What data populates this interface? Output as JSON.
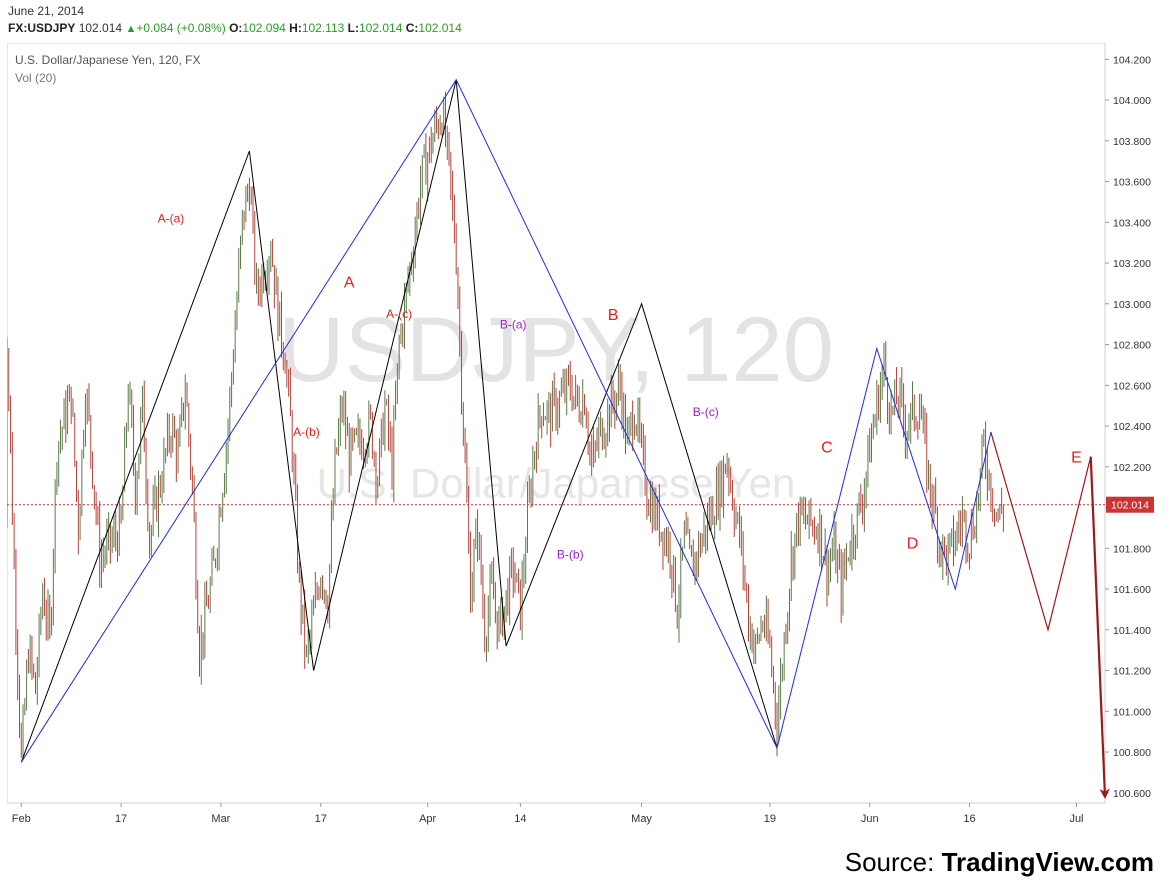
{
  "header": {
    "date": "June 21, 2014",
    "symbol": "FX:USDJPY",
    "last": "102.014",
    "change": "+0.084 (+0.08%)",
    "o_label": "O:",
    "o_value": "102.094",
    "h_label": "H:",
    "h_value": "102.113",
    "l_label": "L:",
    "l_value": "102.014",
    "c_label": "C:",
    "c_value": "102.014"
  },
  "source": {
    "prefix": "Source:",
    "brand": "TradingView.com"
  },
  "colors": {
    "up": "#2a9d2a",
    "candle_up": "#5a7a4a",
    "candle_down": "#b0443a",
    "wave_black": "#000000",
    "wave_blue": "#1f2fd6",
    "wave_red": "#9a1a1a",
    "label_red": "#dd2222",
    "label_purple": "#9a22c8",
    "price_line": "#cc3333"
  },
  "chart_data": {
    "type": "line",
    "title": "U.S. Dollar/Japanese Yen, 120, FX",
    "subtitle": "Vol (20)",
    "watermark": [
      "USDJPY, 120",
      "U.S. Dollar/Japanese Yen"
    ],
    "y_axis_side": "right",
    "ylim": [
      100.55,
      104.28
    ],
    "y_ticks": [
      "104.200",
      "104.000",
      "103.800",
      "103.600",
      "103.400",
      "103.200",
      "103.000",
      "102.800",
      "102.600",
      "102.400",
      "102.200",
      "102.000",
      "101.800",
      "101.600",
      "101.400",
      "101.200",
      "101.000",
      "100.800",
      "100.600"
    ],
    "x_axis_type": "date",
    "xlim": [
      "2014-02-01",
      "2014-07-05"
    ],
    "x_ticks": [
      {
        "date": "2014-02-03",
        "label": "Feb"
      },
      {
        "date": "2014-02-17",
        "label": "17"
      },
      {
        "date": "2014-03-03",
        "label": "Mar"
      },
      {
        "date": "2014-03-17",
        "label": "17"
      },
      {
        "date": "2014-04-01",
        "label": "Apr"
      },
      {
        "date": "2014-04-14",
        "label": "14"
      },
      {
        "date": "2014-05-01",
        "label": "May"
      },
      {
        "date": "2014-05-19",
        "label": "19"
      },
      {
        "date": "2014-06-02",
        "label": "Jun"
      },
      {
        "date": "2014-06-16",
        "label": "16"
      },
      {
        "date": "2014-07-01",
        "label": "Jul"
      }
    ],
    "current_price": 102.014,
    "current_price_label": "102.014",
    "price_path": [
      [
        "2014-02-01",
        101.95
      ],
      [
        "2014-02-01",
        102.85
      ],
      [
        "2014-02-02",
        101.7
      ],
      [
        "2014-02-03",
        100.75
      ],
      [
        "2014-02-04",
        101.3
      ],
      [
        "2014-02-05",
        101.1
      ],
      [
        "2014-02-06",
        101.6
      ],
      [
        "2014-02-07",
        101.35
      ],
      [
        "2014-02-08",
        102.3
      ],
      [
        "2014-02-10",
        102.55
      ],
      [
        "2014-02-11",
        101.9
      ],
      [
        "2014-02-12",
        102.6
      ],
      [
        "2014-02-13",
        102.2
      ],
      [
        "2014-02-14",
        101.75
      ],
      [
        "2014-02-17",
        101.9
      ],
      [
        "2014-02-18",
        102.6
      ],
      [
        "2014-02-19",
        102.1
      ],
      [
        "2014-02-20",
        102.5
      ],
      [
        "2014-02-21",
        101.85
      ],
      [
        "2014-02-24",
        102.4
      ],
      [
        "2014-02-25",
        102.25
      ],
      [
        "2014-02-26",
        102.6
      ],
      [
        "2014-02-27",
        102.1
      ],
      [
        "2014-02-28",
        101.3
      ],
      [
        "2014-03-02",
        101.7
      ],
      [
        "2014-03-04",
        102.4
      ],
      [
        "2014-03-05",
        102.9
      ],
      [
        "2014-03-06",
        103.4
      ],
      [
        "2014-03-07",
        103.6
      ],
      [
        "2014-03-08",
        103.05
      ],
      [
        "2014-03-10",
        103.3
      ],
      [
        "2014-03-11",
        102.95
      ],
      [
        "2014-03-12",
        102.75
      ],
      [
        "2014-03-13",
        102.3
      ],
      [
        "2014-03-14",
        101.6
      ],
      [
        "2014-03-15",
        101.25
      ],
      [
        "2014-03-17",
        101.7
      ],
      [
        "2014-03-18",
        101.55
      ],
      [
        "2014-03-19",
        102.2
      ],
      [
        "2014-03-20",
        102.5
      ],
      [
        "2014-03-21",
        102.25
      ],
      [
        "2014-03-24",
        102.4
      ],
      [
        "2014-03-25",
        102.15
      ],
      [
        "2014-03-26",
        102.5
      ],
      [
        "2014-03-27",
        102.2
      ],
      [
        "2014-03-28",
        102.8
      ],
      [
        "2014-03-30",
        103.3
      ],
      [
        "2014-03-31",
        103.6
      ],
      [
        "2014-04-02",
        103.85
      ],
      [
        "2014-04-03",
        103.95
      ],
      [
        "2014-04-04",
        103.65
      ],
      [
        "2014-04-05",
        103.25
      ],
      [
        "2014-04-06",
        102.4
      ],
      [
        "2014-04-07",
        101.6
      ],
      [
        "2014-04-08",
        101.9
      ],
      [
        "2014-04-09",
        101.4
      ],
      [
        "2014-04-10",
        101.6
      ],
      [
        "2014-04-11",
        101.4
      ],
      [
        "2014-04-13",
        101.7
      ],
      [
        "2014-04-14",
        101.5
      ],
      [
        "2014-04-15",
        101.95
      ],
      [
        "2014-04-16",
        102.3
      ],
      [
        "2014-04-17",
        102.5
      ],
      [
        "2014-04-18",
        102.45
      ],
      [
        "2014-04-21",
        102.6
      ],
      [
        "2014-04-22",
        102.5
      ],
      [
        "2014-04-23",
        102.55
      ],
      [
        "2014-04-24",
        102.2
      ],
      [
        "2014-04-25",
        102.35
      ],
      [
        "2014-04-28",
        102.6
      ],
      [
        "2014-04-29",
        102.3
      ],
      [
        "2014-04-30",
        102.5
      ],
      [
        "2014-05-01",
        102.25
      ],
      [
        "2014-05-02",
        102.05
      ],
      [
        "2014-05-05",
        101.8
      ],
      [
        "2014-05-06",
        101.5
      ],
      [
        "2014-05-07",
        101.85
      ],
      [
        "2014-05-08",
        101.7
      ],
      [
        "2014-05-09",
        101.8
      ],
      [
        "2014-05-12",
        102.1
      ],
      [
        "2014-05-13",
        102.25
      ],
      [
        "2014-05-14",
        102.0
      ],
      [
        "2014-05-15",
        101.8
      ],
      [
        "2014-05-16",
        101.45
      ],
      [
        "2014-05-17",
        101.3
      ],
      [
        "2014-05-18",
        101.45
      ],
      [
        "2014-05-19",
        101.3
      ],
      [
        "2014-05-20",
        100.95
      ],
      [
        "2014-05-21",
        101.35
      ],
      [
        "2014-05-22",
        101.75
      ],
      [
        "2014-05-23",
        101.95
      ],
      [
        "2014-05-26",
        101.9
      ],
      [
        "2014-05-27",
        101.7
      ],
      [
        "2014-05-28",
        101.8
      ],
      [
        "2014-05-29",
        101.6
      ],
      [
        "2014-05-30",
        101.8
      ],
      [
        "2014-06-01",
        102.05
      ],
      [
        "2014-06-02",
        102.3
      ],
      [
        "2014-06-03",
        102.5
      ],
      [
        "2014-06-04",
        102.7
      ],
      [
        "2014-06-05",
        102.45
      ],
      [
        "2014-06-06",
        102.55
      ],
      [
        "2014-06-07",
        102.4
      ],
      [
        "2014-06-09",
        102.5
      ],
      [
        "2014-06-10",
        102.2
      ],
      [
        "2014-06-11",
        102.0
      ],
      [
        "2014-06-12",
        101.8
      ],
      [
        "2014-06-13",
        101.75
      ],
      [
        "2014-06-15",
        101.95
      ],
      [
        "2014-06-16",
        101.85
      ],
      [
        "2014-06-17",
        102.0
      ],
      [
        "2014-06-18",
        102.3
      ],
      [
        "2014-06-19",
        102.1
      ],
      [
        "2014-06-20",
        101.95
      ],
      [
        "2014-06-21",
        102.014
      ]
    ],
    "waves": [
      {
        "color": "black",
        "points": [
          [
            "2014-02-03",
            100.75
          ],
          [
            "2014-03-07",
            103.75
          ],
          [
            "2014-03-16",
            101.2
          ],
          [
            "2014-04-05",
            104.1
          ],
          [
            "2014-04-12",
            101.32
          ],
          [
            "2014-05-01",
            103.0
          ],
          [
            "2014-05-20",
            100.82
          ]
        ]
      },
      {
        "color": "blue",
        "points": [
          [
            "2014-02-03",
            100.75
          ],
          [
            "2014-04-05",
            104.1
          ],
          [
            "2014-05-20",
            100.82
          ],
          [
            "2014-06-03",
            102.78
          ],
          [
            "2014-06-14",
            101.6
          ],
          [
            "2014-06-19",
            102.37
          ]
        ]
      },
      {
        "color": "red",
        "points": [
          [
            "2014-06-19",
            102.37
          ],
          [
            "2014-06-27",
            101.4
          ],
          [
            "2014-07-03",
            102.25
          ],
          [
            "2014-07-05",
            100.58
          ]
        ],
        "arrow_end": true
      }
    ],
    "annotations": [
      {
        "text": "A-(a)",
        "date": "2014-02-24",
        "y": 103.4,
        "color": "red",
        "size": 12
      },
      {
        "text": "A",
        "date": "2014-03-21",
        "y": 103.08,
        "color": "red",
        "size": 16
      },
      {
        "text": "A-(c)",
        "date": "2014-03-28",
        "y": 102.93,
        "color": "red",
        "size": 12
      },
      {
        "text": "A-(b)",
        "date": "2014-03-15",
        "y": 102.35,
        "color": "red",
        "size": 12
      },
      {
        "text": "B",
        "date": "2014-04-27",
        "y": 102.92,
        "color": "red",
        "size": 16
      },
      {
        "text": "B-(a)",
        "date": "2014-04-13",
        "y": 102.88,
        "color": "purple",
        "size": 12
      },
      {
        "text": "B-(c)",
        "date": "2014-05-10",
        "y": 102.45,
        "color": "purple",
        "size": 12
      },
      {
        "text": "B-(b)",
        "date": "2014-04-21",
        "y": 101.75,
        "color": "purple",
        "size": 12
      },
      {
        "text": "C",
        "date": "2014-05-27",
        "y": 102.27,
        "color": "red",
        "size": 16
      },
      {
        "text": "D",
        "date": "2014-06-08",
        "y": 101.8,
        "color": "red",
        "size": 16
      },
      {
        "text": "E",
        "date": "2014-07-01",
        "y": 102.22,
        "color": "red",
        "size": 16
      }
    ]
  }
}
